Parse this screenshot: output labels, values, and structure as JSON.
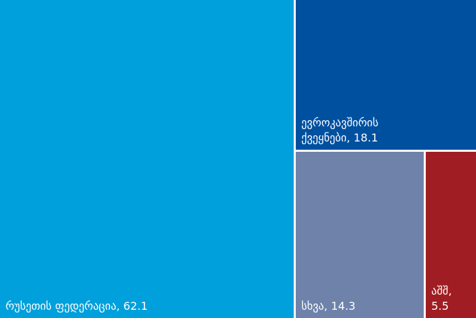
{
  "chart_data": {
    "type": "treemap",
    "title": "",
    "unit": "",
    "items": [
      {
        "name": "რუსეთის ფედერაცია",
        "value": 62.1,
        "label": "რუსეთის ფედერაცია, 62.1",
        "color": "#00a0dc"
      },
      {
        "name": "ევროკავშირის ქვეყნები",
        "value": 18.1,
        "label": "ევროკავშირის\nქვეყნები, 18.1",
        "color": "#0050a0"
      },
      {
        "name": "სხვა",
        "value": 14.3,
        "label": "სხვა, 14.3",
        "color": "#6e82aa"
      },
      {
        "name": "აშშ",
        "value": 5.5,
        "label": "აშშ,\n5.5",
        "color": "#a01e23"
      }
    ]
  }
}
